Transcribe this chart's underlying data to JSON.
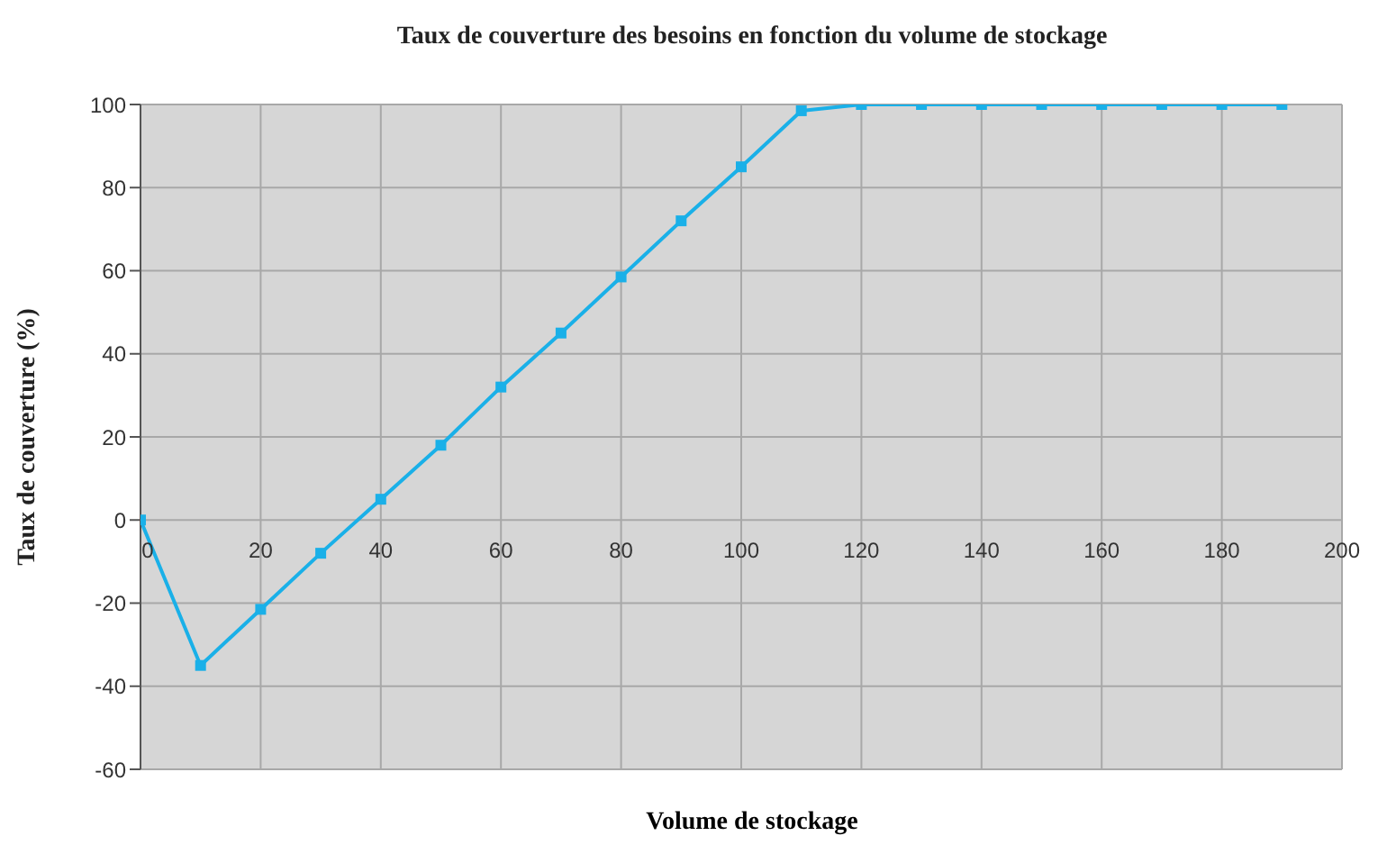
{
  "chart_data": {
    "type": "line",
    "title": "Taux de couverture des besoins en fonction du volume de stockage",
    "xlabel": "Volume de stockage",
    "ylabel": "Taux de couverture (%)",
    "x": [
      0,
      10,
      20,
      30,
      40,
      50,
      60,
      70,
      80,
      90,
      100,
      110,
      120,
      130,
      140,
      150,
      160,
      170,
      180,
      190
    ],
    "series": [
      {
        "color": "#1ab0e8",
        "values": [
          0,
          -35,
          -21.5,
          -8,
          5,
          18,
          32,
          45,
          58.5,
          72,
          85,
          98.5,
          100,
          100,
          100,
          100,
          100,
          100,
          100,
          100
        ]
      }
    ],
    "xlim": [
      0,
      200
    ],
    "xticks": [
      0,
      20,
      40,
      60,
      80,
      100,
      120,
      140,
      160,
      180,
      200
    ],
    "ylim": [
      -60,
      100
    ],
    "yticks": [
      -60,
      -40,
      -20,
      0,
      20,
      40,
      60,
      80,
      100
    ],
    "grid": true,
    "marker": "square",
    "line_style": "solid"
  }
}
